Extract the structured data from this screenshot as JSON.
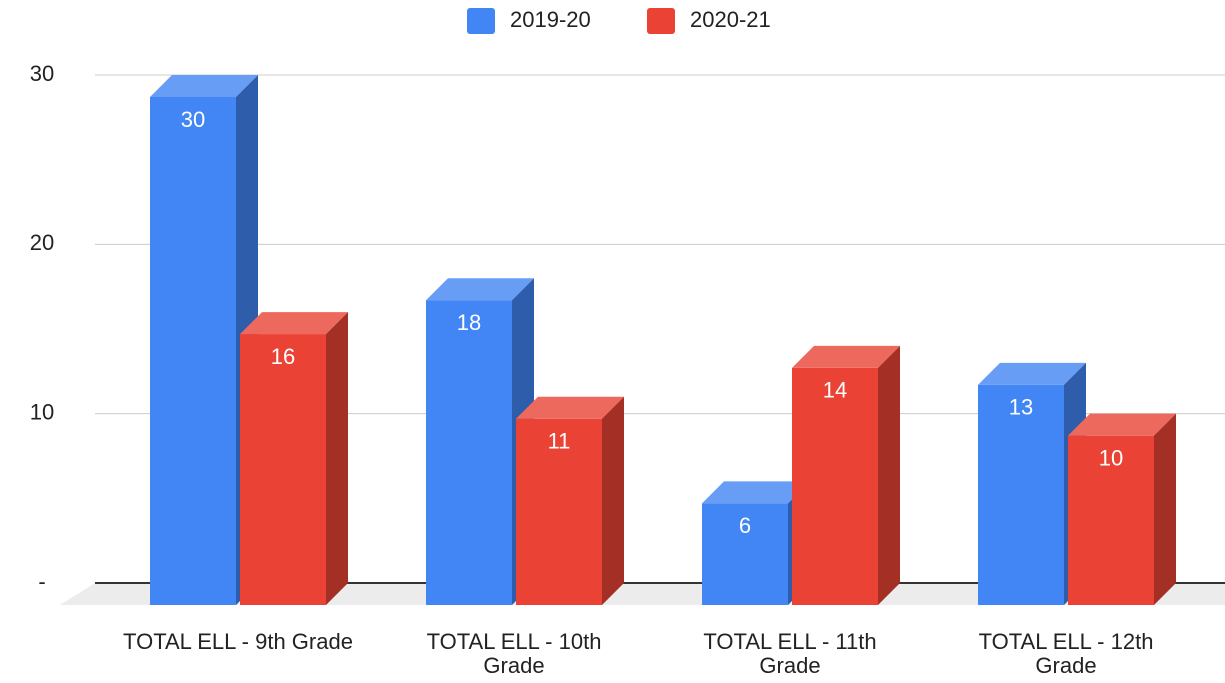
{
  "chart_data": {
    "type": "bar3d",
    "categories": [
      "TOTAL ELL - 9th Grade",
      "TOTAL ELL - 10th Grade",
      "TOTAL ELL - 11th Grade",
      "TOTAL ELL - 12th Grade"
    ],
    "series": [
      {
        "name": "2019-20",
        "color": "#4285f4",
        "values": [
          30,
          18,
          6,
          13
        ]
      },
      {
        "name": "2020-21",
        "color": "#ea4335",
        "values": [
          16,
          11,
          14,
          10
        ]
      }
    ],
    "ylim": [
      0,
      30
    ],
    "yticks": [
      {
        "value": 0,
        "label": "-"
      },
      10,
      20,
      30
    ],
    "grid": true,
    "legend": "top"
  }
}
